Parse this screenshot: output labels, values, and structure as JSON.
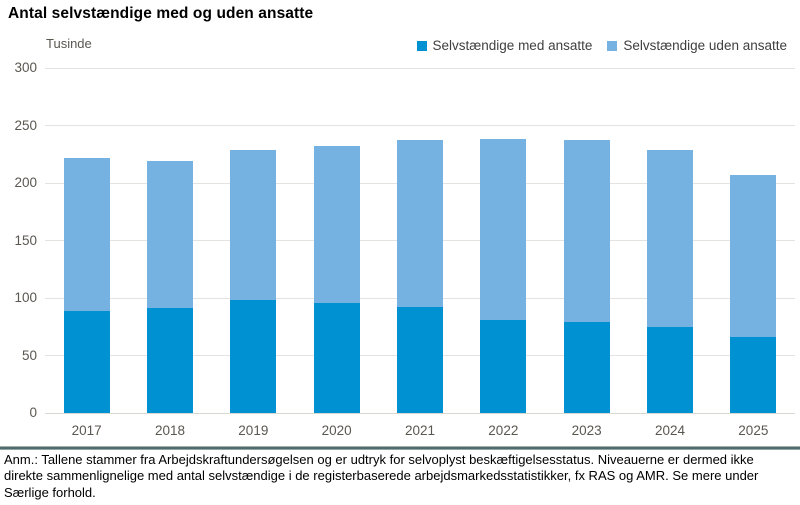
{
  "title": "Antal selvstændige med og uden ansatte",
  "y_axis": {
    "unit_label": "Tusinde"
  },
  "footnote": "Anm.: Tallene stammer fra Arbejdskraftundersøgelsen og er udtryk for selvoplyst beskæftigelsesstatus. Niveauerne er dermed ikke direkte sammenlignelige med antal selvstændige i de registerbaserede arbejdsmarkedsstatistikker, fx RAS og AMR. Se mere under Særlige forhold.",
  "colors": {
    "med_ansatte": "#0091d2",
    "uden_ansatte": "#75b2e1",
    "gridline": "#e4e3df",
    "tick_text": "#5a5750",
    "divider": "#4e6b70"
  },
  "chart_data": {
    "type": "bar",
    "stacked": true,
    "title": "Antal selvstændige med og uden ansatte",
    "ylabel": "Tusinde",
    "xlabel": "",
    "categories": [
      "2017",
      "2018",
      "2019",
      "2020",
      "2021",
      "2022",
      "2023",
      "2024",
      "2025"
    ],
    "series": [
      {
        "name": "Selvstændige med ansatte",
        "key": "med-ansatte",
        "color": "#0091d2",
        "values": [
          89,
          91,
          98,
          96,
          92,
          81,
          79,
          75,
          66
        ]
      },
      {
        "name": "Selvstændige uden ansatte",
        "key": "uden-ansatte",
        "color": "#75b2e1",
        "values": [
          133,
          128,
          131,
          136,
          145,
          157,
          158,
          154,
          141
        ]
      }
    ],
    "stack_totals": [
      222,
      219,
      229,
      232,
      237,
      238,
      237,
      229,
      207
    ],
    "ylim": [
      0,
      300
    ],
    "yticks": [
      0,
      50,
      100,
      150,
      200,
      250,
      300
    ],
    "grid": true,
    "legend_position": "top-right"
  }
}
